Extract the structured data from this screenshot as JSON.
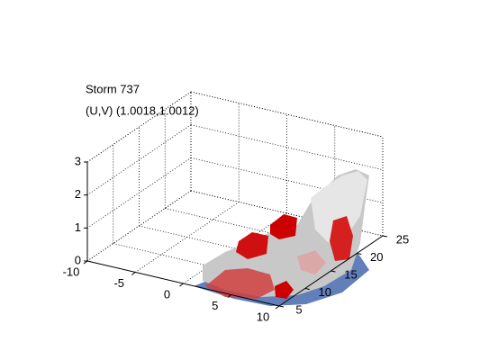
{
  "chart_data": {
    "type": "surface3d",
    "title": "Storm 737",
    "subtitle": "(U,V) (1.0018,1.0012)",
    "xlim": [
      -10,
      10
    ],
    "xticks": [
      -10,
      -5,
      0,
      5,
      10
    ],
    "ylim": [
      5,
      25
    ],
    "yticks": [
      5,
      10,
      15,
      20,
      25
    ],
    "zlim": [
      0,
      3
    ],
    "zticks": [
      0,
      1,
      2,
      3
    ],
    "grid": true
  }
}
